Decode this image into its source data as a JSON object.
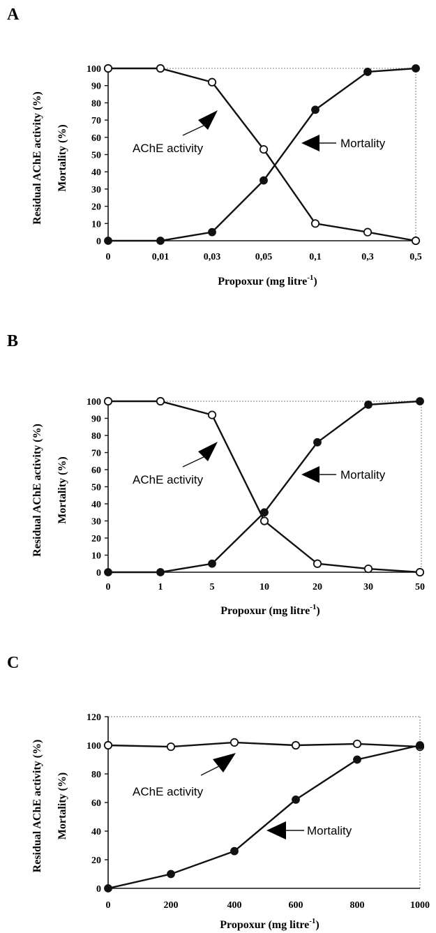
{
  "chart_data": [
    {
      "panel": "A",
      "type": "line",
      "categories": [
        "0",
        "0,01",
        "0,03",
        "0,05",
        "0,1",
        "0,3",
        "0,5"
      ],
      "xlabel": "Propoxur (mg litre",
      "xlabel_sup": "-1",
      "xlabel_end": ")",
      "ylabel": [
        "Residual AChE activity (%)",
        "Mortality (%)"
      ],
      "ylim": [
        0,
        100
      ],
      "yticks": [
        0,
        10,
        20,
        30,
        40,
        50,
        60,
        70,
        80,
        90,
        100
      ],
      "series": [
        {
          "name": "AChE activity",
          "marker": "open-circle",
          "values": [
            100,
            100,
            92,
            53,
            10,
            5,
            0
          ]
        },
        {
          "name": "Mortality",
          "marker": "filled-circle",
          "values": [
            0,
            0,
            5,
            35,
            76,
            98,
            100
          ]
        }
      ],
      "annotations": [
        "AChE activity",
        "Mortality"
      ]
    },
    {
      "panel": "B",
      "type": "line",
      "categories": [
        "0",
        "1",
        "5",
        "10",
        "20",
        "30",
        "50"
      ],
      "xlabel": "Propoxur (mg litre",
      "xlabel_sup": "-1",
      "xlabel_end": ")",
      "ylabel": [
        "Residual AChE activity (%)",
        "Mortality (%)"
      ],
      "ylim": [
        0,
        100
      ],
      "yticks": [
        0,
        10,
        20,
        30,
        40,
        50,
        60,
        70,
        80,
        90,
        100
      ],
      "series": [
        {
          "name": "AChE activity",
          "marker": "open-circle",
          "values": [
            100,
            100,
            92,
            30,
            5,
            2,
            0
          ]
        },
        {
          "name": "Mortality",
          "marker": "filled-circle",
          "values": [
            0,
            0,
            5,
            35,
            76,
            98,
            100
          ]
        }
      ],
      "annotations": [
        "AChE activity",
        "Mortality"
      ]
    },
    {
      "panel": "C",
      "type": "line",
      "categories": [
        "0",
        "200",
        "400",
        "600",
        "800",
        "1000"
      ],
      "xlabel": "Propoxur (mg litre",
      "xlabel_sup": "-1",
      "xlabel_end": ")",
      "ylabel": [
        "Residual AChE activity (%)",
        "Mortality (%)"
      ],
      "ylim": [
        0,
        120
      ],
      "yticks": [
        0,
        20,
        40,
        60,
        80,
        100,
        120
      ],
      "series": [
        {
          "name": "AChE activity",
          "marker": "open-circle",
          "values": [
            100,
            99,
            102,
            100,
            101,
            99
          ]
        },
        {
          "name": "Mortality",
          "marker": "filled-circle",
          "values": [
            0,
            10,
            26,
            62,
            90,
            100
          ]
        }
      ],
      "annotations": [
        "AChE activity",
        "Mortality"
      ]
    }
  ]
}
